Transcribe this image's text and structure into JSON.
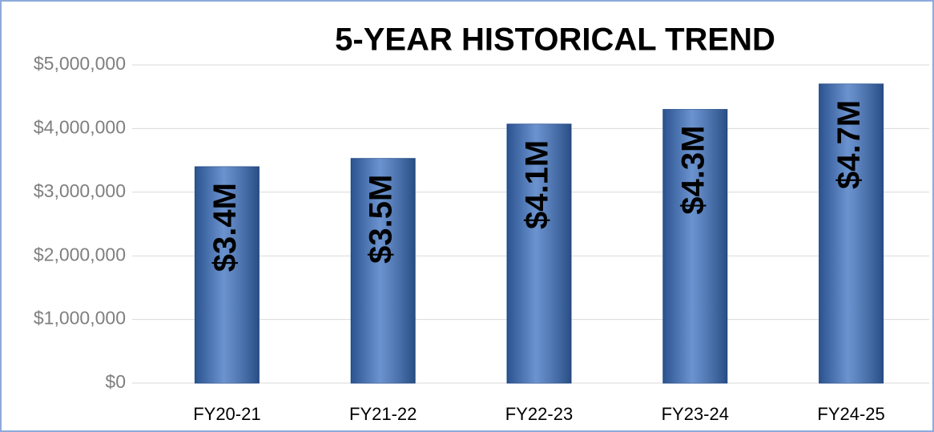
{
  "chart_data": {
    "type": "bar",
    "title": "5-YEAR HISTORICAL TREND",
    "categories": [
      "FY20-21",
      "FY21-22",
      "FY22-23",
      "FY23-24",
      "FY24-25"
    ],
    "values": [
      3400000,
      3530000,
      4070000,
      4300000,
      4700000
    ],
    "value_labels": [
      "$3.4M",
      "$3.5M",
      "$4.1M",
      "$4.3M",
      "$4.7M"
    ],
    "color": "#3a6fbf",
    "ylim": [
      0,
      5000000
    ],
    "yticks": [
      {
        "value": 0,
        "label": "$0"
      },
      {
        "value": 1000000,
        "label": "$1,000,000"
      },
      {
        "value": 2000000,
        "label": "$2,000,000"
      },
      {
        "value": 3000000,
        "label": "$3,000,000"
      },
      {
        "value": 4000000,
        "label": "$4,000,000"
      },
      {
        "value": 5000000,
        "label": "$5,000,000"
      }
    ],
    "grid": true
  }
}
